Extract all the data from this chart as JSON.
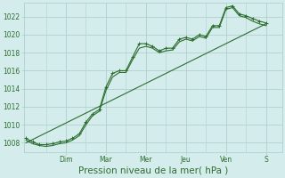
{
  "background_color": "#d4ecec",
  "grid_color": "#b0d0d0",
  "line_color": "#2d6e2d",
  "marker_color": "#2d6e2d",
  "ylim": [
    1007.0,
    1023.5
  ],
  "yticks": [
    1008,
    1010,
    1012,
    1014,
    1016,
    1018,
    1020,
    1022
  ],
  "xlabel": "Pression niveau de la mer( hPa )",
  "xlabel_fontsize": 7.5,
  "day_labels": [
    "Dim",
    "Mar",
    "Mer",
    "Jeu",
    "Ven",
    "S"
  ],
  "day_positions": [
    2.0,
    4.0,
    6.0,
    8.0,
    10.0,
    12.0
  ],
  "xlim": [
    -0.1,
    12.8
  ],
  "line1_x": [
    0.0,
    0.33,
    0.67,
    1.0,
    1.33,
    1.67,
    2.0,
    2.33,
    2.67,
    3.0,
    3.33,
    3.67,
    4.0,
    4.33,
    4.67,
    5.0,
    5.33,
    5.67,
    6.0,
    6.33,
    6.67,
    7.0,
    7.33,
    7.67,
    8.0,
    8.33,
    8.67,
    9.0,
    9.33,
    9.67,
    10.0,
    10.33,
    10.67,
    11.0,
    11.33,
    11.67,
    12.0
  ],
  "line1_y": [
    1008.5,
    1008.1,
    1007.8,
    1007.8,
    1007.9,
    1008.1,
    1008.2,
    1008.5,
    1009.0,
    1010.3,
    1011.2,
    1011.7,
    1014.2,
    1015.7,
    1016.0,
    1016.0,
    1017.5,
    1019.0,
    1019.0,
    1018.7,
    1018.2,
    1018.5,
    1018.5,
    1019.5,
    1019.7,
    1019.5,
    1020.0,
    1019.8,
    1021.0,
    1021.0,
    1023.0,
    1023.2,
    1022.3,
    1022.1,
    1021.8,
    1021.5,
    1021.3
  ],
  "line2_x": [
    0.0,
    0.33,
    0.67,
    1.0,
    1.33,
    1.67,
    2.0,
    2.33,
    2.67,
    3.0,
    3.33,
    3.67,
    4.0,
    4.33,
    4.67,
    5.0,
    5.33,
    5.67,
    6.0,
    6.33,
    6.67,
    7.0,
    7.33,
    7.67,
    8.0,
    8.33,
    8.67,
    9.0,
    9.33,
    9.67,
    10.0,
    10.33,
    10.67,
    11.0,
    11.33,
    11.67,
    12.0
  ],
  "line2_y": [
    1008.3,
    1007.9,
    1007.7,
    1007.6,
    1007.7,
    1007.9,
    1008.0,
    1008.3,
    1008.8,
    1010.0,
    1011.0,
    1011.5,
    1013.8,
    1015.3,
    1015.8,
    1015.8,
    1017.2,
    1018.5,
    1018.7,
    1018.5,
    1018.0,
    1018.2,
    1018.3,
    1019.2,
    1019.5,
    1019.3,
    1019.8,
    1019.6,
    1020.8,
    1020.8,
    1022.8,
    1023.0,
    1022.1,
    1021.9,
    1021.5,
    1021.2,
    1021.0
  ],
  "line3_x": [
    0.0,
    12.0
  ],
  "line3_y": [
    1008.0,
    1021.2
  ]
}
